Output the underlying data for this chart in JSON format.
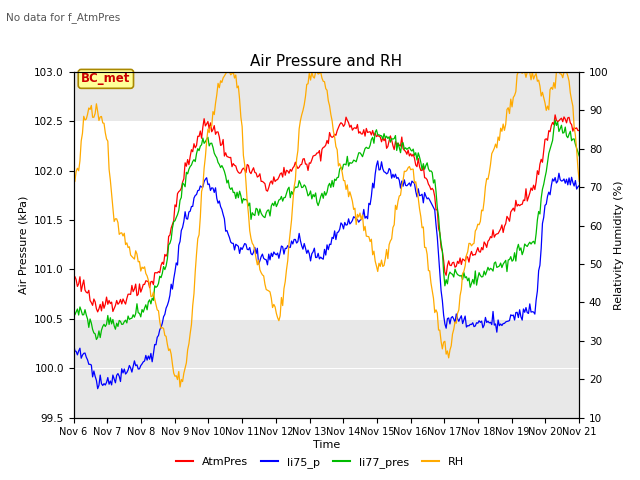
{
  "title": "Air Pressure and RH",
  "top_left_text": "No data for f_AtmPres",
  "box_label": "BC_met",
  "xlabel": "Time",
  "ylabel_left": "Air Pressure (kPa)",
  "ylabel_right": "Relativity Humidity (%)",
  "ylim_left": [
    99.5,
    103.0
  ],
  "ylim_right": [
    10,
    100
  ],
  "yticks_left": [
    99.5,
    100.0,
    100.5,
    101.0,
    101.5,
    102.0,
    102.5,
    103.0
  ],
  "yticks_right": [
    10,
    20,
    30,
    40,
    50,
    60,
    70,
    80,
    90,
    100
  ],
  "xtick_labels": [
    "Nov 6",
    "Nov 7",
    "Nov 8",
    "Nov 9",
    "Nov 10",
    "Nov 11",
    "Nov 12",
    "Nov 13",
    "Nov 14",
    "Nov 15",
    "Nov 16",
    "Nov 17",
    "Nov 18",
    "Nov 19",
    "Nov 20",
    "Nov 21"
  ],
  "legend_entries": [
    "AtmPres",
    "li75_p",
    "li77_pres",
    "RH"
  ],
  "colors": {
    "AtmPres": "#ff0000",
    "li75_p": "#0000ff",
    "li77_pres": "#00bb00",
    "RH": "#ffaa00"
  },
  "bg_gray": "#e8e8e8",
  "band_white": [
    100.5,
    102.5
  ],
  "title_fontsize": 11,
  "label_fontsize": 8,
  "tick_fontsize": 7.5,
  "legend_fontsize": 8
}
